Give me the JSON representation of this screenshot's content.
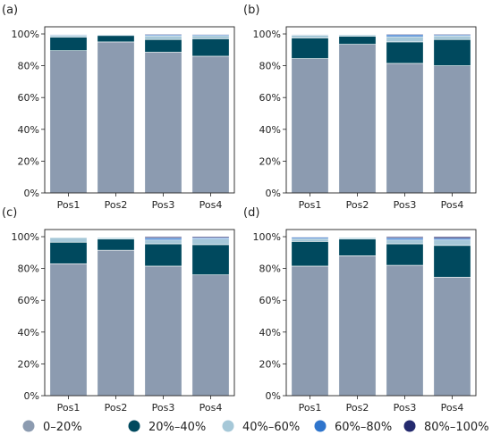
{
  "legend": {
    "items": [
      {
        "label": "0–20%",
        "color": "#8c9bb0"
      },
      {
        "label": "20%–40%",
        "color": "#00495e"
      },
      {
        "label": "40%–60%",
        "color": "#a6c8d8"
      },
      {
        "label": "60%–80%",
        "color": "#2f75cc"
      },
      {
        "label": "80%–100%",
        "color": "#242a6e"
      }
    ]
  },
  "chart_data": [
    {
      "type": "bar",
      "stacked": true,
      "panel_label": "(a)",
      "categories": [
        "Pos1",
        "Pos2",
        "Pos3",
        "Pos4"
      ],
      "ylim": [
        0,
        100
      ],
      "yticks": [
        "0%",
        "20%",
        "40%",
        "60%",
        "80%",
        "100%"
      ],
      "series": [
        {
          "name": "0–20%",
          "values": [
            89.5,
            95,
            88.5,
            86
          ]
        },
        {
          "name": "20%–40%",
          "values": [
            8.5,
            4,
            8,
            11
          ]
        },
        {
          "name": "40%–60%",
          "values": [
            1.2,
            0.6,
            2.3,
            2
          ]
        },
        {
          "name": "60%–80%",
          "values": [
            0.5,
            0.2,
            0.7,
            0.6
          ]
        },
        {
          "name": "80%–100%",
          "values": [
            0.3,
            0.2,
            0.5,
            0.4
          ]
        }
      ]
    },
    {
      "type": "bar",
      "stacked": true,
      "panel_label": "(b)",
      "categories": [
        "Pos1",
        "Pos2",
        "Pos3",
        "Pos4"
      ],
      "ylim": [
        0,
        100
      ],
      "yticks": [
        "0%",
        "20%",
        "40%",
        "60%",
        "80%",
        "100%"
      ],
      "series": [
        {
          "name": "0–20%",
          "values": [
            84.5,
            93.5,
            81.5,
            80
          ]
        },
        {
          "name": "20%–40%",
          "values": [
            13,
            5,
            13.5,
            16.5
          ]
        },
        {
          "name": "40%–60%",
          "values": [
            1.8,
            1,
            3.3,
            2.3
          ]
        },
        {
          "name": "60%–80%",
          "values": [
            0.4,
            0.3,
            1.2,
            0.7
          ]
        },
        {
          "name": "80%–100%",
          "values": [
            0.3,
            0.2,
            0.5,
            0.5
          ]
        }
      ]
    },
    {
      "type": "bar",
      "stacked": true,
      "panel_label": "(c)",
      "categories": [
        "Pos1",
        "Pos2",
        "Pos3",
        "Pos4"
      ],
      "ylim": [
        0,
        100
      ],
      "yticks": [
        "0%",
        "20%",
        "40%",
        "60%",
        "80%",
        "100%"
      ],
      "series": [
        {
          "name": "0–20%",
          "values": [
            83,
            91.5,
            81.5,
            76
          ]
        },
        {
          "name": "20%–40%",
          "values": [
            13.5,
            7,
            14,
            19
          ]
        },
        {
          "name": "40%–60%",
          "values": [
            3,
            1,
            2.5,
            3.5
          ]
        },
        {
          "name": "60%–80%",
          "values": [
            0.3,
            0.3,
            1.2,
            0.8
          ]
        },
        {
          "name": "80%–100%",
          "values": [
            0.2,
            0.2,
            0.8,
            0.7
          ]
        }
      ]
    },
    {
      "type": "bar",
      "stacked": true,
      "panel_label": "(d)",
      "categories": [
        "Pos1",
        "Pos2",
        "Pos3",
        "Pos4"
      ],
      "ylim": [
        0,
        100
      ],
      "yticks": [
        "0%",
        "20%",
        "40%",
        "60%",
        "80%",
        "100%"
      ],
      "series": [
        {
          "name": "0–20%",
          "values": [
            81.5,
            88,
            82,
            74.5
          ]
        },
        {
          "name": "20%–40%",
          "values": [
            15.5,
            10.5,
            13.5,
            20
          ]
        },
        {
          "name": "40%–60%",
          "values": [
            1.8,
            1,
            2.5,
            3.5
          ]
        },
        {
          "name": "60%–80%",
          "values": [
            0.8,
            0.3,
            1.2,
            1
          ]
        },
        {
          "name": "80%–100%",
          "values": [
            0.4,
            0.2,
            0.8,
            1
          ]
        }
      ]
    }
  ]
}
